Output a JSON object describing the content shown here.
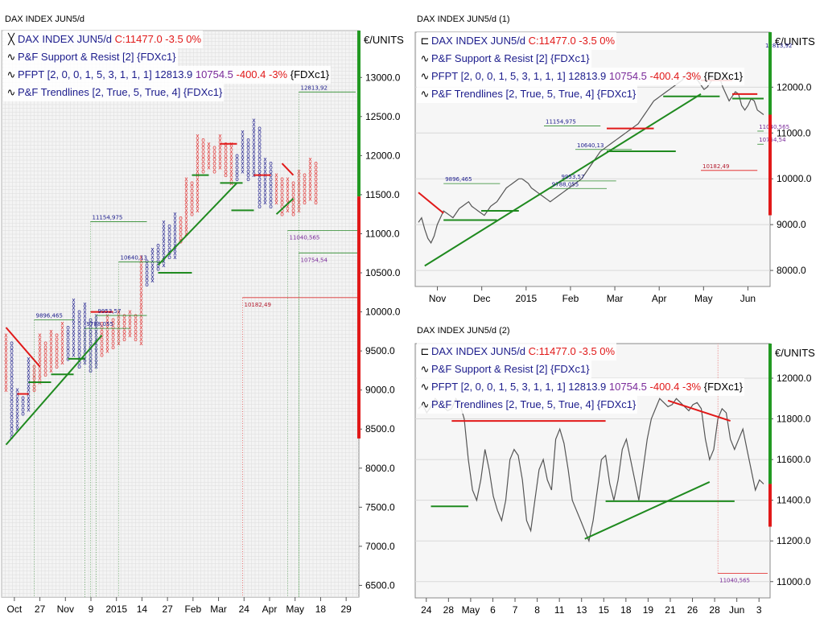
{
  "charts": {
    "left": {
      "title": "DAX INDEX JUN5/d",
      "legend": [
        {
          "icon": "xo",
          "name": "DAX INDEX JUN5/d",
          "close": "C:11477.0",
          "chg": "-3.5",
          "pct": "0%"
        },
        {
          "icon": "wave",
          "name": "P&F Support & Resist [2] {FDXc1}"
        },
        {
          "icon": "wave",
          "name": "PFPT [2, 0, 0, 1, 5, 3, 1, 1, 1]",
          "v1": "12813.9",
          "v2": "10754.5",
          "v3": "-400.4 -3%",
          "tail": "{FDXc1}"
        },
        {
          "icon": "wave",
          "name": "P&F Trendlines [2, True, 5, True, 4] {FDXc1}"
        }
      ]
    },
    "r1": {
      "title": "DAX INDEX JUN5/d (1)",
      "legend": [
        {
          "icon": "box",
          "name": "DAX INDEX JUN5/d",
          "close": "C:11477.0",
          "chg": "-3.5",
          "pct": "0%"
        },
        {
          "icon": "wave",
          "name": "P&F Support & Resist [2] {FDXc1}"
        },
        {
          "icon": "wave",
          "name": "PFPT [2, 0, 0, 1, 5, 3, 1, 1, 1]",
          "v1": "12813.9",
          "v2": "10754.5",
          "v3": "-400.4 -3%",
          "tail": "{FDXc1}"
        },
        {
          "icon": "wave",
          "name": "P&F Trendlines [2, True, 5, True, 4] {FDXc1}"
        }
      ]
    },
    "r2": {
      "title": "DAX INDEX JUN5/d (2)",
      "legend": [
        {
          "icon": "box",
          "name": "DAX INDEX JUN5/d",
          "close": "C:11477.0",
          "chg": "-3.5",
          "pct": "0%"
        },
        {
          "icon": "wave",
          "name": "P&F Support & Resist [2] {FDXc1}"
        },
        {
          "icon": "wave",
          "name": "PFPT [2, 0, 0, 1, 5, 3, 1, 1, 1]",
          "v1": "12813.9",
          "v2": "10754.5",
          "v3": "-400.4 -3%",
          "tail": "{FDXc1}"
        },
        {
          "icon": "wave",
          "name": "P&F Trendlines [2, True, 5, True, 4] {FDXc1}"
        }
      ]
    }
  },
  "chart_data": [
    {
      "id": "left",
      "type": "point-and-figure",
      "title": "DAX INDEX JUN5/d",
      "unit": "€/UNITS",
      "ylim": [
        6350,
        13600
      ],
      "yticks": [
        6500,
        7000,
        7500,
        8000,
        8500,
        9000,
        9500,
        10000,
        10500,
        11000,
        11500,
        12000,
        12500,
        13000
      ],
      "xticks": [
        "Oct",
        "27",
        "Nov",
        "9",
        "2015",
        "14",
        "27",
        "Feb",
        "Mar",
        "24",
        "Apr",
        "May",
        "18",
        "29"
      ],
      "columns": [
        {
          "t": "x",
          "lo": 9000,
          "hi": 9700,
          "c": "red"
        },
        {
          "t": "o",
          "lo": 8400,
          "hi": 9600,
          "c": "blue"
        },
        {
          "t": "x",
          "lo": 8500,
          "hi": 9000,
          "c": "blue"
        },
        {
          "t": "o",
          "lo": 8700,
          "hi": 8900,
          "c": "blue"
        },
        {
          "t": "x",
          "lo": 8750,
          "hi": 9400,
          "c": "blue"
        },
        {
          "t": "o",
          "lo": 9000,
          "hi": 9300,
          "c": "red"
        },
        {
          "t": "x",
          "lo": 9100,
          "hi": 9700,
          "c": "red"
        },
        {
          "t": "o",
          "lo": 9200,
          "hi": 9600,
          "c": "red"
        },
        {
          "t": "x",
          "lo": 9250,
          "hi": 9750,
          "c": "red"
        },
        {
          "t": "o",
          "lo": 9300,
          "hi": 9700,
          "c": "red"
        },
        {
          "t": "x",
          "lo": 9350,
          "hi": 9850,
          "c": "red"
        },
        {
          "t": "o",
          "lo": 9400,
          "hi": 9800,
          "c": "blue"
        },
        {
          "t": "x",
          "lo": 9450,
          "hi": 10150,
          "c": "blue"
        },
        {
          "t": "o",
          "lo": 9300,
          "hi": 10000,
          "c": "blue"
        },
        {
          "t": "x",
          "lo": 9350,
          "hi": 10100,
          "c": "blue"
        },
        {
          "t": "o",
          "lo": 9250,
          "hi": 9900,
          "c": "blue"
        },
        {
          "t": "x",
          "lo": 9300,
          "hi": 9950,
          "c": "blue"
        },
        {
          "t": "o",
          "lo": 9450,
          "hi": 9850,
          "c": "red"
        },
        {
          "t": "x",
          "lo": 9500,
          "hi": 9950,
          "c": "red"
        },
        {
          "t": "o",
          "lo": 9550,
          "hi": 9900,
          "c": "red"
        },
        {
          "t": "x",
          "lo": 9600,
          "hi": 10000,
          "c": "red"
        },
        {
          "t": "o",
          "lo": 9650,
          "hi": 9950,
          "c": "red"
        },
        {
          "t": "x",
          "lo": 9700,
          "hi": 10000,
          "c": "red"
        },
        {
          "t": "o",
          "lo": 9650,
          "hi": 9950,
          "c": "red"
        },
        {
          "t": "x",
          "lo": 9600,
          "hi": 10700,
          "c": "red"
        },
        {
          "t": "o",
          "lo": 10350,
          "hi": 10650,
          "c": "blue"
        },
        {
          "t": "x",
          "lo": 10400,
          "hi": 10800,
          "c": "blue"
        },
        {
          "t": "o",
          "lo": 10550,
          "hi": 10850,
          "c": "blue"
        },
        {
          "t": "x",
          "lo": 10600,
          "hi": 11150,
          "c": "blue"
        },
        {
          "t": "o",
          "lo": 10700,
          "hi": 11100,
          "c": "blue"
        },
        {
          "t": "x",
          "lo": 10700,
          "hi": 11250,
          "c": "blue"
        },
        {
          "t": "o",
          "lo": 10900,
          "hi": 11200,
          "c": "red"
        },
        {
          "t": "x",
          "lo": 11000,
          "hi": 11700,
          "c": "red"
        },
        {
          "t": "o",
          "lo": 11250,
          "hi": 11650,
          "c": "red"
        },
        {
          "t": "x",
          "lo": 11300,
          "hi": 12250,
          "c": "red"
        },
        {
          "t": "o",
          "lo": 11800,
          "hi": 12200,
          "c": "red"
        },
        {
          "t": "x",
          "lo": 11850,
          "hi": 12150,
          "c": "red"
        },
        {
          "t": "o",
          "lo": 11800,
          "hi": 12100,
          "c": "red"
        },
        {
          "t": "x",
          "lo": 11850,
          "hi": 12250,
          "c": "red"
        },
        {
          "t": "o",
          "lo": 11750,
          "hi": 12150,
          "c": "red"
        },
        {
          "t": "x",
          "lo": 11650,
          "hi": 12150,
          "c": "red"
        },
        {
          "t": "o",
          "lo": 11700,
          "hi": 12000,
          "c": "blue"
        },
        {
          "t": "x",
          "lo": 11800,
          "hi": 12300,
          "c": "blue"
        },
        {
          "t": "o",
          "lo": 11700,
          "hi": 12200,
          "c": "blue"
        },
        {
          "t": "x",
          "lo": 11750,
          "hi": 12450,
          "c": "blue"
        },
        {
          "t": "o",
          "lo": 11350,
          "hi": 12350,
          "c": "blue"
        },
        {
          "t": "x",
          "lo": 11400,
          "hi": 11950,
          "c": "blue"
        },
        {
          "t": "o",
          "lo": 11350,
          "hi": 11900,
          "c": "blue"
        },
        {
          "t": "x",
          "lo": 11400,
          "hi": 11750,
          "c": "red"
        },
        {
          "t": "o",
          "lo": 11250,
          "hi": 11700,
          "c": "red"
        },
        {
          "t": "x",
          "lo": 11300,
          "hi": 11700,
          "c": "red"
        },
        {
          "t": "o",
          "lo": 11250,
          "hi": 11650,
          "c": "red"
        },
        {
          "t": "x",
          "lo": 11300,
          "hi": 11800,
          "c": "red"
        },
        {
          "t": "o",
          "lo": 11400,
          "hi": 11750,
          "c": "red"
        },
        {
          "t": "x",
          "lo": 11450,
          "hi": 11950,
          "c": "red"
        },
        {
          "t": "o",
          "lo": 11400,
          "hi": 11900,
          "c": "red"
        }
      ],
      "targets": [
        {
          "label": "12813,92",
          "value": 12813.92,
          "color": "#1c1c8c"
        },
        {
          "label": "11154,975",
          "value": 11154.975,
          "color": "#1c1c8c"
        },
        {
          "label": "10640,13",
          "value": 10640.13,
          "color": "#1c1c8c"
        },
        {
          "label": "9953,57",
          "value": 9953.57,
          "color": "#1c1c8c"
        },
        {
          "label": "9896,465",
          "value": 9896.465,
          "color": "#1c1c8c"
        },
        {
          "label": "9788,055",
          "value": 9788.055,
          "color": "#1c1c8c"
        },
        {
          "label": "11040,565",
          "value": 11040.565,
          "color": "#7a2a9a"
        },
        {
          "label": "10754,54",
          "value": 10754.54,
          "color": "#7a2a9a"
        },
        {
          "label": "10182,49",
          "value": 10182.49,
          "color": "#b2182b"
        }
      ],
      "trendlines": [
        {
          "color": "green",
          "from": [
            0,
            8300
          ],
          "to": [
            17,
            9700
          ]
        },
        {
          "color": "green",
          "from": [
            27,
            10600
          ],
          "to": [
            41,
            11650
          ]
        },
        {
          "color": "red",
          "from": [
            0,
            9800
          ],
          "to": [
            6,
            9300
          ]
        },
        {
          "color": "red",
          "from": [
            49,
            11900
          ],
          "to": [
            51,
            11750
          ]
        },
        {
          "color": "green",
          "from": [
            48,
            11250
          ],
          "to": [
            51,
            11450
          ]
        }
      ],
      "levels": [
        {
          "color": "green",
          "value": 9100,
          "from": 4,
          "to": 8
        },
        {
          "color": "green",
          "value": 9200,
          "from": 8,
          "to": 12
        },
        {
          "color": "green",
          "value": 9400,
          "from": 11,
          "to": 14
        },
        {
          "color": "green",
          "value": 10500,
          "from": 27,
          "to": 33
        },
        {
          "color": "green",
          "value": 11750,
          "from": 33,
          "to": 36
        },
        {
          "color": "green",
          "value": 11650,
          "from": 38,
          "to": 42
        },
        {
          "color": "green",
          "value": 11300,
          "from": 40,
          "to": 44
        },
        {
          "color": "red",
          "value": 8950,
          "from": 2,
          "to": 4
        },
        {
          "color": "red",
          "value": 10000,
          "from": 15,
          "to": 19
        },
        {
          "color": "red",
          "value": 12150,
          "from": 38,
          "to": 41
        },
        {
          "color": "red",
          "value": 11750,
          "from": 44,
          "to": 47
        }
      ],
      "last_price": 11477.0
    },
    {
      "id": "r1",
      "type": "line",
      "title": "DAX INDEX JUN5/d (1)",
      "unit": "€/UNITS",
      "ylim": [
        7650,
        13200
      ],
      "yticks": [
        8000,
        9000,
        10000,
        11000,
        12000
      ],
      "xticks": [
        "Nov",
        "Dec",
        "2015",
        "Feb",
        "Mar",
        "Apr",
        "May",
        "Jun"
      ],
      "y": [
        9050,
        9150,
        8900,
        8700,
        8600,
        8750,
        9000,
        9150,
        9300,
        9250,
        9200,
        9150,
        9250,
        9350,
        9400,
        9450,
        9500,
        9400,
        9350,
        9300,
        9250,
        9200,
        9300,
        9400,
        9450,
        9500,
        9600,
        9700,
        9800,
        9850,
        9900,
        9950,
        10000,
        10000,
        9950,
        9900,
        9800,
        9750,
        9700,
        9650,
        9600,
        9550,
        9500,
        9550,
        9600,
        9650,
        9700,
        9750,
        9800,
        9850,
        9900,
        9950,
        10000,
        10100,
        10200,
        10300,
        10400,
        10500,
        10600,
        10650,
        10700,
        10750,
        10800,
        10850,
        10900,
        10950,
        11000,
        11050,
        11100,
        11150,
        11200,
        11300,
        11400,
        11500,
        11600,
        11700,
        11750,
        11800,
        11850,
        11900,
        11950,
        12000,
        12050,
        12100,
        12150,
        12250,
        12350,
        12300,
        12200,
        12150,
        12050,
        11950,
        12000,
        12100,
        12200,
        12250,
        12200,
        12000,
        11850,
        11700,
        11800,
        11900,
        11850,
        11600,
        11500,
        11600,
        11750,
        11700,
        11500,
        11450,
        11400
      ]
    },
    {
      "id": "r2",
      "type": "line",
      "title": "DAX INDEX JUN5/d (2)",
      "unit": "€/UNITS",
      "ylim": [
        10920,
        12170
      ],
      "yticks": [
        11000,
        11200,
        11400,
        11600,
        11800,
        12000
      ],
      "xticks": [
        "24",
        "28",
        "May",
        "6",
        "7",
        "8",
        "11",
        "13",
        "15",
        "18",
        "19",
        "21",
        "26",
        "28",
        "Jun",
        "3"
      ],
      "y": [
        11850,
        11870,
        11830,
        11860,
        11900,
        11880,
        11860,
        11840,
        11850,
        11900,
        11870,
        11800,
        11600,
        11450,
        11400,
        11500,
        11650,
        11550,
        11420,
        11350,
        11300,
        11400,
        11600,
        11650,
        11620,
        11500,
        11300,
        11250,
        11400,
        11550,
        11600,
        11500,
        11450,
        11700,
        11750,
        11680,
        11550,
        11400,
        11350,
        11300,
        11250,
        11200,
        11300,
        11450,
        11600,
        11620,
        11480,
        11400,
        11500,
        11650,
        11700,
        11600,
        11500,
        11400,
        11550,
        11700,
        11800,
        11850,
        11900,
        11880,
        11860,
        11870,
        11900,
        11880,
        11860,
        11840,
        11870,
        11880,
        11850,
        11700,
        11600,
        11650,
        11800,
        11850,
        11830,
        11700,
        11650,
        11700,
        11750,
        11650,
        11550,
        11450,
        11500,
        11480
      ]
    }
  ]
}
